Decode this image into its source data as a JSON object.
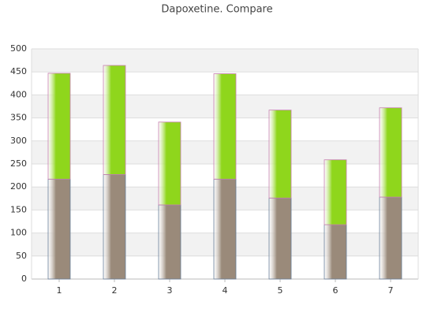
{
  "chart_data": {
    "type": "stacked_bar",
    "title": "Dapoxetine. Compare",
    "categories": [
      "1",
      "2",
      "3",
      "4",
      "5",
      "6",
      "7"
    ],
    "series": [
      {
        "color": "#9a8a7a",
        "values": [
          217,
          227,
          161,
          217,
          176,
          118,
          178
        ]
      },
      {
        "color": "#8fd61c",
        "values": [
          230,
          237,
          180,
          229,
          191,
          141,
          194
        ]
      }
    ],
    "ylim": [
      0,
      500
    ],
    "yticks": [
      0,
      50,
      100,
      150,
      200,
      250,
      300,
      350,
      400,
      450,
      500
    ],
    "grid": true
  }
}
